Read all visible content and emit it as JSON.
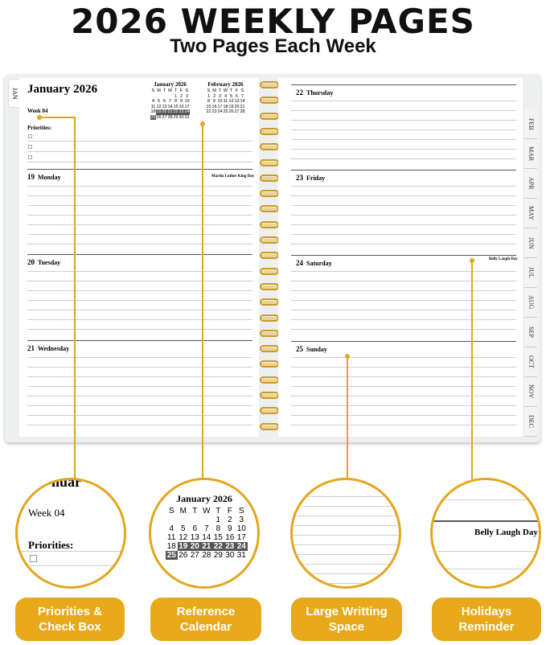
{
  "header": {
    "title": "2026 WEEKLY PAGES",
    "subtitle": "Two Pages Each Week"
  },
  "left_page": {
    "month_tab": "JAN",
    "month_title": "January 2026",
    "week": "Week 04",
    "priorities_label": "Priorities:",
    "cal1": {
      "title": "January 2026",
      "dow": [
        "S",
        "M",
        "T",
        "W",
        "T",
        "F",
        "S"
      ],
      "days": [
        "",
        "",
        "",
        "",
        "1",
        "2",
        "3",
        "4",
        "5",
        "6",
        "7",
        "8",
        "9",
        "10",
        "11",
        "12",
        "13",
        "14",
        "15",
        "16",
        "17",
        "18",
        "19",
        "20",
        "21",
        "22",
        "23",
        "24",
        "25",
        "26",
        "27",
        "28",
        "29",
        "30",
        "31"
      ]
    },
    "cal2": {
      "title": "February 2026",
      "dow": [
        "S",
        "M",
        "T",
        "W",
        "T",
        "F",
        "S"
      ],
      "days": [
        "1",
        "2",
        "3",
        "4",
        "5",
        "6",
        "7",
        "8",
        "9",
        "10",
        "11",
        "12",
        "13",
        "14",
        "15",
        "16",
        "17",
        "18",
        "19",
        "20",
        "21",
        "22",
        "23",
        "24",
        "25",
        "26",
        "27",
        "28"
      ]
    },
    "days": [
      {
        "num": "19",
        "name": "Monday",
        "holiday": "Martin Luther King Day"
      },
      {
        "num": "20",
        "name": "Tuesday",
        "holiday": ""
      },
      {
        "num": "21",
        "name": "Wednesday",
        "holiday": ""
      }
    ]
  },
  "right_page": {
    "days": [
      {
        "num": "22",
        "name": "Thursday"
      },
      {
        "num": "23",
        "name": "Friday"
      },
      {
        "num": "24",
        "name": "Saturday",
        "holiday": "Belly Laugh Day"
      },
      {
        "num": "25",
        "name": "Sunday"
      }
    ],
    "month_tabs": [
      "FEB",
      "MAR",
      "APR",
      "MAY",
      "JUN",
      "JUL",
      "AUG",
      "SEP",
      "OCT",
      "NOV",
      "DEC"
    ]
  },
  "zoom": {
    "partial_title": "nuar",
    "week": "Week 04",
    "priorities_label": "Priorities:",
    "cal_title": "January 2026",
    "holiday": "Belly Laugh Day"
  },
  "features": [
    {
      "label_line1": "Priorities &",
      "label_line2": "Check Box"
    },
    {
      "label_line1": "Reference",
      "label_line2": "Calendar"
    },
    {
      "label_line1": "Large Writting",
      "label_line2": "Space"
    },
    {
      "label_line1": "Holidays",
      "label_line2": "Reminder"
    }
  ],
  "colors": {
    "accent": "#e3a61c",
    "coil": "#c99a2e",
    "highlight": "#555555"
  }
}
